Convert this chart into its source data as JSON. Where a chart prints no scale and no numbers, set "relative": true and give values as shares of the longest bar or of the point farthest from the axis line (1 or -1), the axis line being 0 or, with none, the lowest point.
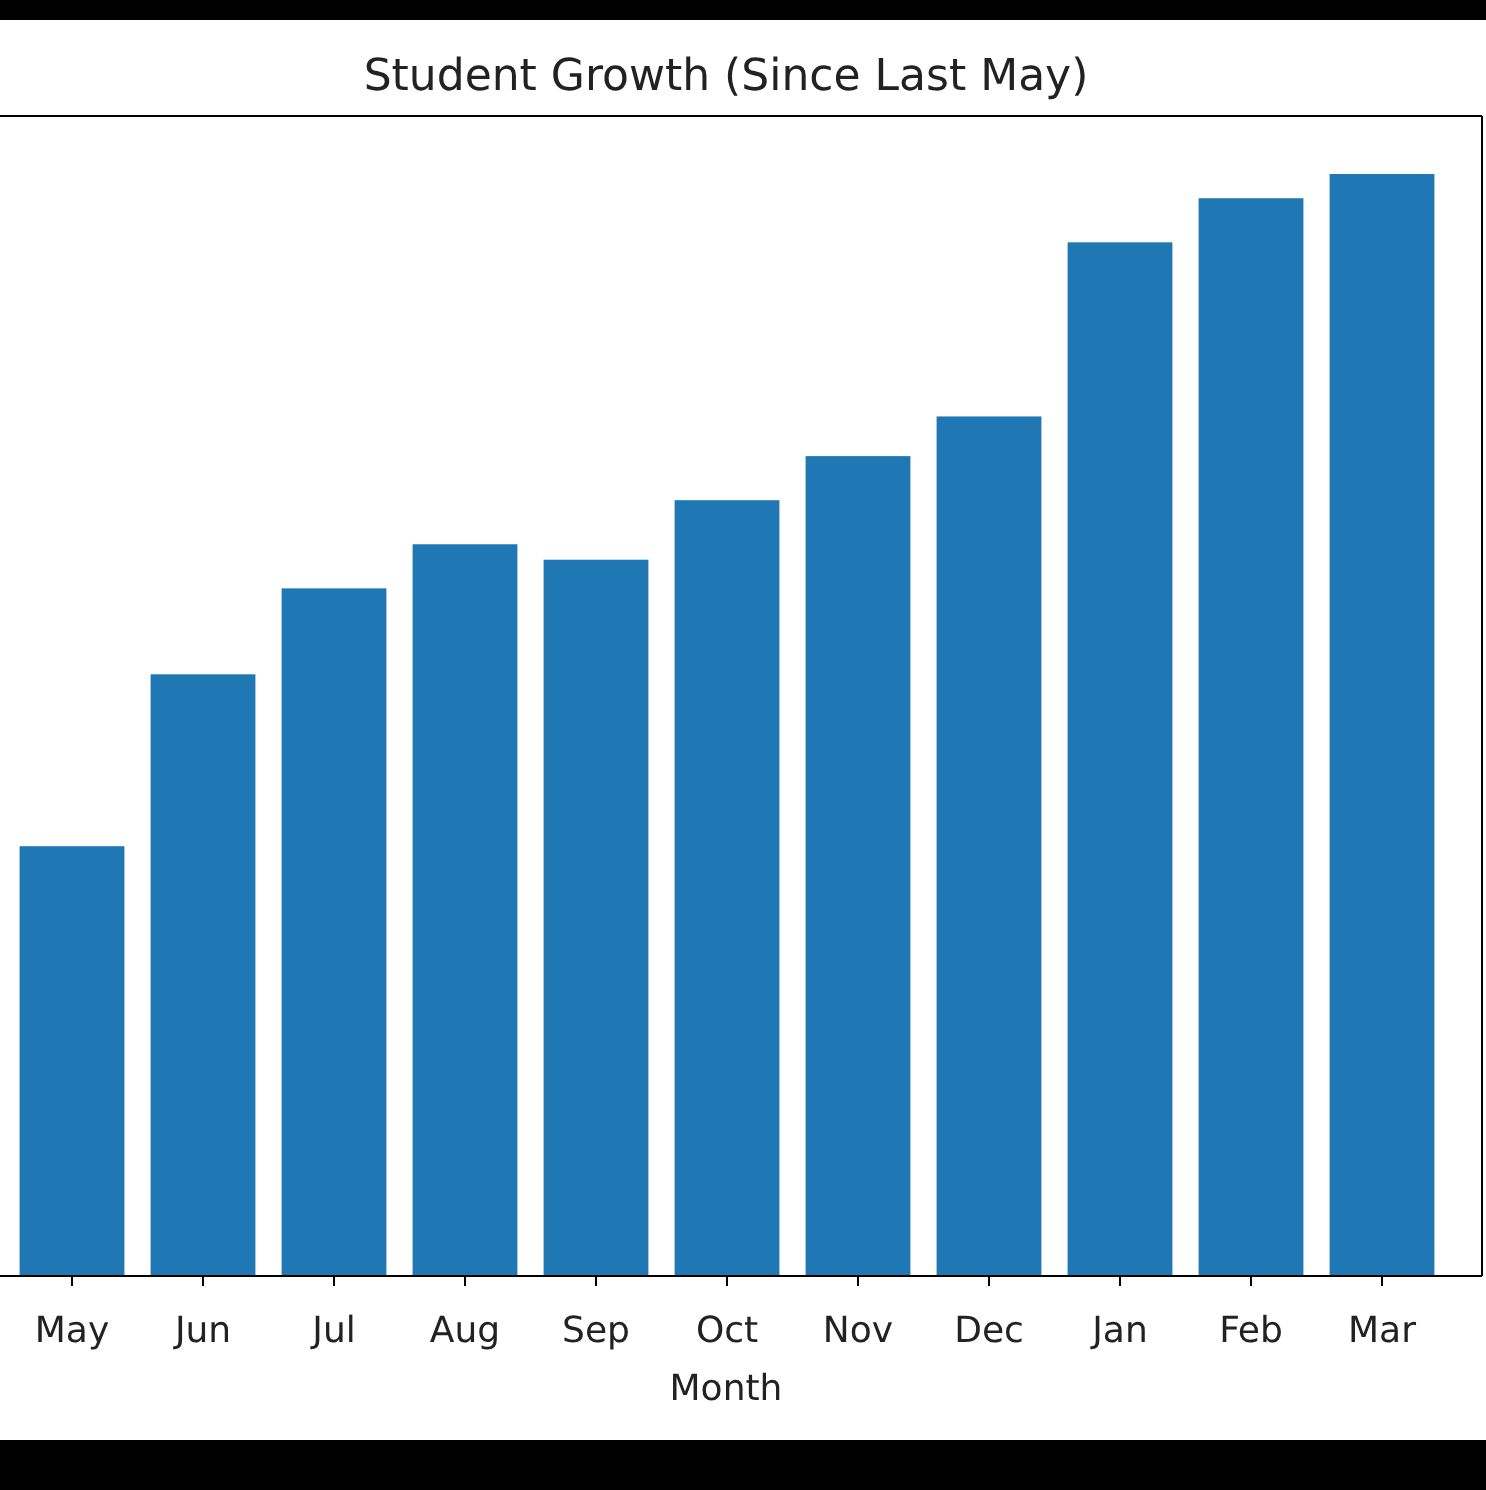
{
  "chart_data": {
    "type": "bar",
    "title": "Student Growth (Since Last May)",
    "xlabel": "Month",
    "categories": [
      "May",
      "Jun",
      "Jul",
      "Aug",
      "Sep",
      "Oct",
      "Nov",
      "Dec",
      "Jan",
      "Feb",
      "Mar"
    ],
    "values": [
      0.39,
      0.546,
      0.624,
      0.664,
      0.65,
      0.704,
      0.744,
      0.78,
      0.938,
      0.978,
      1
    ],
    "color": "#1f77b4",
    "relative": true
  }
}
